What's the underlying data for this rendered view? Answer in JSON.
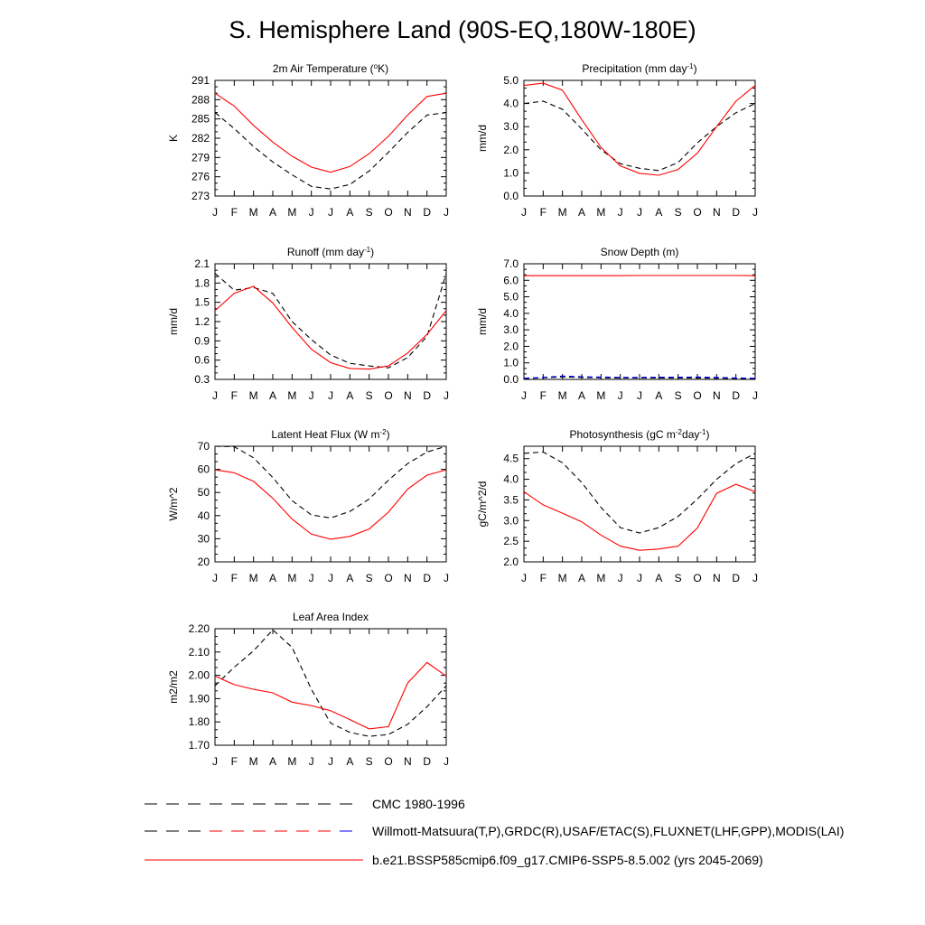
{
  "title": "S. Hemisphere Land (90S-EQ,180W-180E)",
  "chart_data": [
    {
      "type": "line",
      "title": "2m Air Temperature (°K)",
      "ylabel": "K",
      "x": [
        "J",
        "F",
        "M",
        "A",
        "M",
        "J",
        "J",
        "A",
        "S",
        "O",
        "N",
        "D",
        "J"
      ],
      "ylim": [
        273,
        291
      ],
      "yticks": [
        273,
        276,
        279,
        282,
        285,
        288,
        291
      ],
      "ytick_labels": [
        "273",
        "276",
        "279",
        "282",
        "285",
        "288",
        "291"
      ],
      "series": [
        {
          "style": "dashed",
          "color": "#000000",
          "values": [
            286.0,
            283.5,
            280.7,
            278.3,
            276.3,
            274.5,
            274.1,
            274.8,
            276.9,
            279.8,
            282.9,
            285.6,
            286.0
          ]
        },
        {
          "style": "solid",
          "color": "#ff0000",
          "values": [
            289.0,
            287.0,
            284.0,
            281.4,
            279.2,
            277.5,
            276.7,
            277.6,
            279.6,
            282.3,
            285.6,
            288.5,
            289.0
          ]
        }
      ]
    },
    {
      "type": "line",
      "title": "Precipitation (mm day-1)",
      "ylabel": "mm/d",
      "x": [
        "J",
        "F",
        "M",
        "A",
        "M",
        "J",
        "J",
        "A",
        "S",
        "O",
        "N",
        "D",
        "J"
      ],
      "ylim": [
        0.0,
        5.0
      ],
      "yticks": [
        0.0,
        1.0,
        2.0,
        3.0,
        4.0,
        5.0
      ],
      "ytick_labels": [
        "0.0",
        "1.0",
        "2.0",
        "3.0",
        "4.0",
        "5.0"
      ],
      "series": [
        {
          "style": "dashed",
          "color": "#000000",
          "values": [
            4.0,
            4.1,
            3.75,
            2.9,
            2.0,
            1.4,
            1.2,
            1.1,
            1.45,
            2.3,
            3.0,
            3.6,
            4.0
          ]
        },
        {
          "style": "solid",
          "color": "#ff0000",
          "values": [
            4.78,
            4.88,
            4.58,
            3.3,
            2.1,
            1.3,
            0.98,
            0.9,
            1.15,
            1.85,
            3.0,
            4.1,
            4.78
          ]
        }
      ]
    },
    {
      "type": "line",
      "title": "Runoff (mm day-1)",
      "ylabel": "mm/d",
      "x": [
        "J",
        "F",
        "M",
        "A",
        "M",
        "J",
        "J",
        "A",
        "S",
        "O",
        "N",
        "D",
        "J"
      ],
      "ylim": [
        0.3,
        2.1
      ],
      "yticks": [
        0.3,
        0.6,
        0.9,
        1.2,
        1.5,
        1.8,
        2.1
      ],
      "ytick_labels": [
        "0.3",
        "0.6",
        "0.9",
        "1.2",
        "1.5",
        "1.8",
        "2.1"
      ],
      "series": [
        {
          "style": "dashed",
          "color": "#000000",
          "values": [
            1.95,
            1.69,
            1.73,
            1.64,
            1.2,
            0.92,
            0.68,
            0.55,
            0.51,
            0.48,
            0.64,
            0.97,
            1.95
          ]
        },
        {
          "style": "solid",
          "color": "#ff0000",
          "values": [
            1.37,
            1.64,
            1.75,
            1.49,
            1.11,
            0.77,
            0.56,
            0.47,
            0.46,
            0.51,
            0.71,
            1.0,
            1.37
          ]
        }
      ]
    },
    {
      "type": "line",
      "title": "Snow Depth (m)",
      "ylabel": "mm/d",
      "x": [
        "J",
        "F",
        "M",
        "A",
        "M",
        "J",
        "J",
        "A",
        "S",
        "O",
        "N",
        "D",
        "J"
      ],
      "ylim": [
        0.0,
        7.0
      ],
      "yticks": [
        0.0,
        1.0,
        2.0,
        3.0,
        4.0,
        5.0,
        6.0,
        7.0
      ],
      "ytick_labels": [
        "0.0",
        "1.0",
        "2.0",
        "3.0",
        "4.0",
        "5.0",
        "6.0",
        "7.0"
      ],
      "series": [
        {
          "style": "dashed",
          "color": "#000000",
          "values": [
            0.05,
            0.1,
            0.15,
            0.12,
            0.1,
            0.08,
            0.08,
            0.08,
            0.08,
            0.08,
            0.07,
            0.06,
            0.05
          ]
        },
        {
          "style": "dashed",
          "color": "#0000ff",
          "values": [
            0.07,
            0.12,
            0.2,
            0.16,
            0.14,
            0.12,
            0.12,
            0.13,
            0.13,
            0.14,
            0.12,
            0.09,
            0.07
          ]
        },
        {
          "style": "solid",
          "color": "#ff0000",
          "values": [
            6.28,
            6.28,
            6.28,
            6.28,
            6.28,
            6.28,
            6.29,
            6.29,
            6.29,
            6.29,
            6.29,
            6.29,
            6.28
          ]
        }
      ]
    },
    {
      "type": "line",
      "title": "Latent Heat Flux (W m-2)",
      "ylabel": "W/m^2",
      "x": [
        "J",
        "F",
        "M",
        "A",
        "M",
        "J",
        "J",
        "A",
        "S",
        "O",
        "N",
        "D",
        "J"
      ],
      "ylim": [
        20,
        70
      ],
      "yticks": [
        20,
        30,
        40,
        50,
        60,
        70
      ],
      "ytick_labels": [
        "20",
        "30",
        "40",
        "50",
        "60",
        "70"
      ],
      "series": [
        {
          "style": "dashed",
          "color": "#000000",
          "values": [
            70.0,
            69.8,
            65.0,
            56.5,
            46.5,
            40.3,
            39.0,
            41.8,
            47.2,
            55.3,
            62.5,
            67.5,
            70.0
          ]
        },
        {
          "style": "solid",
          "color": "#ff0000",
          "values": [
            59.8,
            58.5,
            54.8,
            47.5,
            38.5,
            32.0,
            29.8,
            31.0,
            34.2,
            41.5,
            51.5,
            57.5,
            59.8
          ]
        }
      ]
    },
    {
      "type": "line",
      "title": "Photosynthesis (gC m-2day-1)",
      "ylabel": "gC/m^2/d",
      "x": [
        "J",
        "F",
        "M",
        "A",
        "M",
        "J",
        "J",
        "A",
        "S",
        "O",
        "N",
        "D",
        "J"
      ],
      "ylim": [
        2.0,
        4.8
      ],
      "yticks": [
        2.0,
        2.5,
        3.0,
        3.5,
        4.0,
        4.5
      ],
      "ytick_labels": [
        "2.0",
        "2.5",
        "3.0",
        "3.5",
        "4.0",
        "4.5"
      ],
      "series": [
        {
          "style": "dashed",
          "color": "#000000",
          "values": [
            4.63,
            4.66,
            4.4,
            3.92,
            3.32,
            2.83,
            2.7,
            2.83,
            3.1,
            3.52,
            4.0,
            4.38,
            4.63
          ]
        },
        {
          "style": "solid",
          "color": "#ff0000",
          "values": [
            3.7,
            3.38,
            3.18,
            2.97,
            2.65,
            2.38,
            2.28,
            2.31,
            2.38,
            2.82,
            3.66,
            3.88,
            3.7
          ]
        }
      ]
    },
    {
      "type": "line",
      "title": "Leaf Area Index",
      "ylabel": "m2/m2",
      "x": [
        "J",
        "F",
        "M",
        "A",
        "M",
        "J",
        "J",
        "A",
        "S",
        "O",
        "N",
        "D",
        "J"
      ],
      "ylim": [
        1.7,
        2.2
      ],
      "yticks": [
        1.7,
        1.8,
        1.9,
        2.0,
        2.1,
        2.2
      ],
      "ytick_labels": [
        "1.70",
        "1.80",
        "1.90",
        "2.00",
        "2.10",
        "2.20"
      ],
      "series": [
        {
          "style": "dashed",
          "color": "#000000",
          "values": [
            1.955,
            2.035,
            2.105,
            2.195,
            2.12,
            1.94,
            1.795,
            1.755,
            1.738,
            1.746,
            1.79,
            1.865,
            1.955
          ]
        },
        {
          "style": "solid",
          "color": "#ff0000",
          "values": [
            1.997,
            1.96,
            1.94,
            1.925,
            1.885,
            1.87,
            1.848,
            1.81,
            1.77,
            1.78,
            1.967,
            2.055,
            1.997
          ]
        }
      ]
    }
  ],
  "legend": [
    {
      "text": "CMC 1980-1996",
      "style": "dashed",
      "colors": [
        "#000000"
      ]
    },
    {
      "text": "Willmott-Matsuura(T,P),GRDC(R),USAF/ETAC(S),FLUXNET(LHF,GPP),MODIS(LAI)",
      "style": "dashed",
      "colors": [
        "#000000",
        "#ff0000",
        "#0000ff"
      ]
    },
    {
      "text": "b.e21.BSSP585cmip6.f09_g17.CMIP6-SSP5-8.5.002 (yrs 2045-2069)",
      "style": "solid",
      "colors": [
        "#ff0000"
      ]
    }
  ]
}
